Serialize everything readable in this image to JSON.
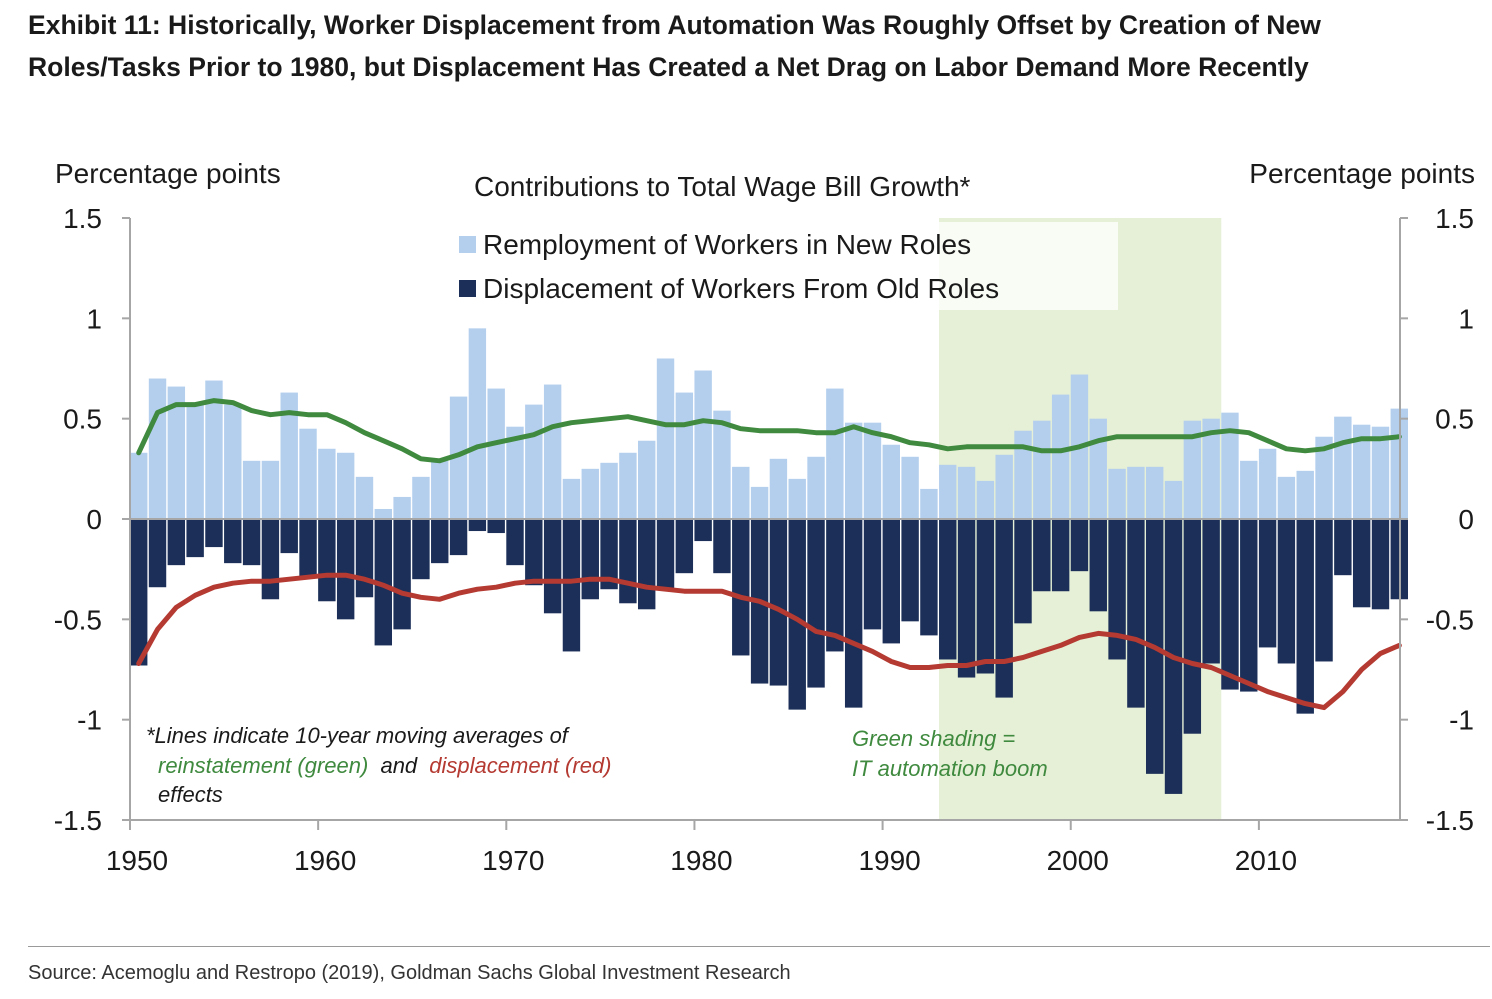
{
  "exhibit": {
    "title_line1": "Exhibit 11: Historically, Worker Displacement from Automation Was Roughly Offset by Creation of New",
    "title_line2": "Roles/Tasks Prior to 1980, but Displacement Has Created a Net Drag on Labor Demand More Recently",
    "source": "Source: Acemoglu and Restropo (2019), Goldman Sachs Global Investment Research"
  },
  "chart_data": {
    "type": "bar",
    "title": "Contributions to Total Wage Bill Growth*",
    "ylabel_left": "Percentage points",
    "ylabel_right": "Percentage points",
    "xlabel": "",
    "ylim": [
      -1.5,
      1.5
    ],
    "yticks": [
      1.5,
      1,
      0.5,
      0,
      -0.5,
      -1,
      -1.5
    ],
    "ytick_labels": [
      "1.5",
      "1",
      "0.5",
      "0",
      "-0.5",
      "-1",
      "-1.5"
    ],
    "xlim": [
      1950,
      2017.5
    ],
    "xticks": [
      1950,
      1960,
      1970,
      1980,
      1990,
      2000,
      2010
    ],
    "xtick_labels": [
      "1950",
      "1960",
      "1970",
      "1980",
      "1990",
      "2000",
      "2010"
    ],
    "categories": [
      1950,
      1951,
      1952,
      1953,
      1954,
      1955,
      1956,
      1957,
      1958,
      1959,
      1960,
      1961,
      1962,
      1963,
      1964,
      1965,
      1966,
      1967,
      1968,
      1969,
      1970,
      1971,
      1972,
      1973,
      1974,
      1975,
      1976,
      1977,
      1978,
      1979,
      1980,
      1981,
      1982,
      1983,
      1984,
      1985,
      1986,
      1987,
      1988,
      1989,
      1990,
      1991,
      1992,
      1993,
      1994,
      1995,
      1996,
      1997,
      1998,
      1999,
      2000,
      2001,
      2002,
      2003,
      2004,
      2005,
      2006,
      2007,
      2008,
      2009,
      2010,
      2011,
      2012,
      2013,
      2014,
      2015,
      2016,
      2017
    ],
    "series": [
      {
        "name": "Remployment of Workers in New Roles",
        "kind": "bar",
        "color": "#b4cfee",
        "values": [
          0.33,
          0.7,
          0.66,
          0.57,
          0.69,
          0.57,
          0.29,
          0.29,
          0.63,
          0.45,
          0.35,
          0.33,
          0.21,
          0.05,
          0.11,
          0.21,
          0.29,
          0.61,
          0.95,
          0.65,
          0.46,
          0.57,
          0.67,
          0.2,
          0.25,
          0.28,
          0.33,
          0.39,
          0.8,
          0.63,
          0.74,
          0.54,
          0.26,
          0.16,
          0.3,
          0.2,
          0.31,
          0.65,
          0.48,
          0.48,
          0.37,
          0.31,
          0.15,
          0.27,
          0.26,
          0.19,
          0.32,
          0.44,
          0.49,
          0.62,
          0.72,
          0.5,
          0.25,
          0.26,
          0.26,
          0.19,
          0.49,
          0.5,
          0.53,
          0.29,
          0.35,
          0.21,
          0.24,
          0.41,
          0.51,
          0.47,
          0.46,
          0.55
        ]
      },
      {
        "name": "Displacement of Workers From Old Roles",
        "kind": "bar",
        "color": "#1b2f58",
        "values": [
          -0.73,
          -0.34,
          -0.23,
          -0.19,
          -0.14,
          -0.22,
          -0.23,
          -0.4,
          -0.17,
          -0.29,
          -0.41,
          -0.5,
          -0.39,
          -0.63,
          -0.55,
          -0.3,
          -0.22,
          -0.18,
          -0.06,
          -0.07,
          -0.23,
          -0.33,
          -0.47,
          -0.66,
          -0.4,
          -0.35,
          -0.42,
          -0.45,
          -0.35,
          -0.27,
          -0.11,
          -0.27,
          -0.68,
          -0.82,
          -0.83,
          -0.95,
          -0.84,
          -0.66,
          -0.94,
          -0.55,
          -0.62,
          -0.51,
          -0.58,
          -0.7,
          -0.79,
          -0.77,
          -0.89,
          -0.52,
          -0.36,
          -0.36,
          -0.26,
          -0.46,
          -0.7,
          -0.94,
          -1.27,
          -1.37,
          -1.07,
          -0.72,
          -0.85,
          -0.86,
          -0.64,
          -0.72,
          -0.97,
          -0.71,
          -0.28,
          -0.44,
          -0.45,
          -0.4
        ]
      },
      {
        "name": "10-year moving average of reinstatement effects",
        "kind": "line",
        "color": "#3f8a3f",
        "values": [
          0.33,
          0.53,
          0.57,
          0.57,
          0.59,
          0.58,
          0.54,
          0.52,
          0.53,
          0.52,
          0.52,
          0.48,
          0.43,
          0.39,
          0.35,
          0.3,
          0.29,
          0.32,
          0.36,
          0.38,
          0.4,
          0.42,
          0.46,
          0.48,
          0.49,
          0.5,
          0.51,
          0.49,
          0.47,
          0.47,
          0.49,
          0.48,
          0.45,
          0.44,
          0.44,
          0.44,
          0.43,
          0.43,
          0.46,
          0.43,
          0.41,
          0.38,
          0.37,
          0.35,
          0.36,
          0.36,
          0.36,
          0.36,
          0.34,
          0.34,
          0.36,
          0.39,
          0.41,
          0.41,
          0.41,
          0.41,
          0.41,
          0.43,
          0.44,
          0.43,
          0.39,
          0.35,
          0.34,
          0.35,
          0.38,
          0.4,
          0.4,
          0.41
        ]
      },
      {
        "name": "10-year moving average of displacement effects",
        "kind": "line",
        "color": "#b43a32",
        "values": [
          -0.72,
          -0.55,
          -0.44,
          -0.38,
          -0.34,
          -0.32,
          -0.31,
          -0.31,
          -0.3,
          -0.29,
          -0.28,
          -0.28,
          -0.3,
          -0.33,
          -0.37,
          -0.39,
          -0.4,
          -0.37,
          -0.35,
          -0.34,
          -0.32,
          -0.31,
          -0.31,
          -0.31,
          -0.3,
          -0.3,
          -0.32,
          -0.34,
          -0.35,
          -0.36,
          -0.36,
          -0.36,
          -0.39,
          -0.41,
          -0.45,
          -0.5,
          -0.56,
          -0.58,
          -0.62,
          -0.66,
          -0.71,
          -0.74,
          -0.74,
          -0.73,
          -0.73,
          -0.71,
          -0.71,
          -0.69,
          -0.66,
          -0.63,
          -0.59,
          -0.57,
          -0.58,
          -0.6,
          -0.64,
          -0.69,
          -0.72,
          -0.74,
          -0.78,
          -0.82,
          -0.86,
          -0.89,
          -0.92,
          -0.94,
          -0.86,
          -0.75,
          -0.67,
          -0.63
        ]
      }
    ],
    "shading": {
      "label_line1": "Green shading =",
      "label_line2": "IT automation boom",
      "x_start": 1993,
      "x_end": 2008,
      "color": "#e6f0d6",
      "text_color": "#3f8a3f"
    },
    "legend": {
      "position": "top-center",
      "items": [
        "Remployment of Workers in New Roles",
        "Displacement of Workers From Old Roles"
      ]
    },
    "note": {
      "line1": "*Lines indicate 10-year moving averages of",
      "line2_green": "reinstatement (green)",
      "line2_and": "and",
      "line2_red": "displacement (red)",
      "line3": "effects"
    },
    "axis_color": "#a6a6a6"
  }
}
